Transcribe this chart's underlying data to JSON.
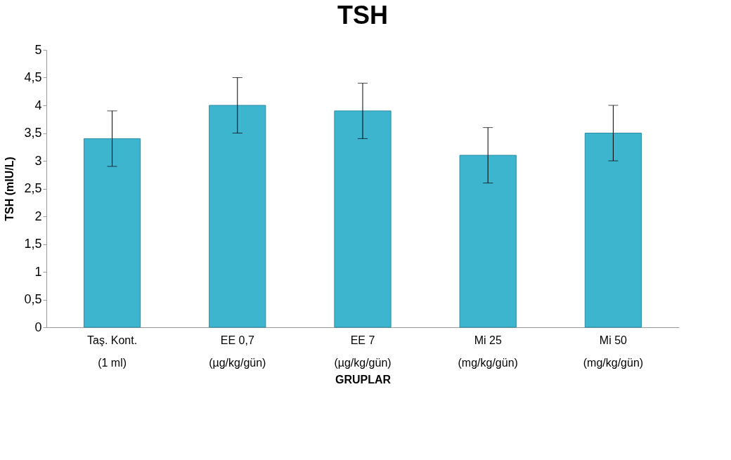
{
  "chart_data": {
    "type": "bar",
    "title": "TSH",
    "xlabel": "GRUPLAR",
    "ylabel": "TSH (mIU/L)",
    "categories": [
      "Taş. Kont.\n(1 ml)",
      "EE 0,7\n(µg/kg/gün)",
      "EE 7\n(µg/kg/gün)",
      "Mi 25\n(mg/kg/gün)",
      "Mi 50\n(mg/kg/gün)"
    ],
    "values": [
      3.4,
      4.0,
      3.9,
      3.1,
      3.5
    ],
    "errors": [
      0.5,
      0.5,
      0.5,
      0.5,
      0.5
    ],
    "color": "#3db5cf",
    "ylim": [
      0,
      5
    ],
    "yticks": [
      0,
      {
        "value": 0.5,
        "label": "0,5"
      },
      1,
      {
        "value": 1.5,
        "label": "1,5"
      },
      2,
      {
        "value": 2.5,
        "label": "2,5"
      },
      3,
      {
        "value": 3.5,
        "label": "3,5"
      },
      4,
      {
        "value": 4.5,
        "label": "4,5"
      },
      5
    ],
    "grid": false
  }
}
